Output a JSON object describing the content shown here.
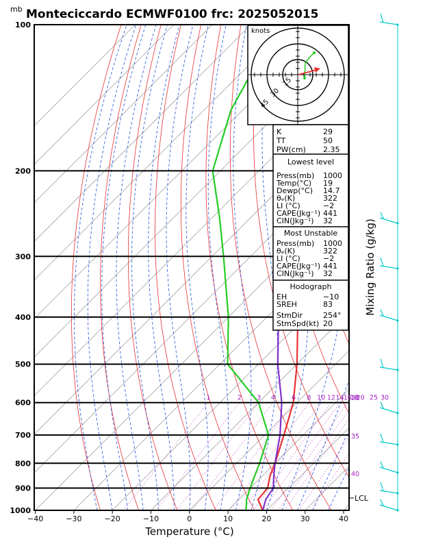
{
  "title": "Monteciccardo ECMWF0100  frc: 2025052015",
  "units_label": "mb",
  "chart_data": {
    "type": "skew-t",
    "xlabel": "Temperature (°C)",
    "right_label": "Mixing Ratio  (g/kg)",
    "x_ticks": [
      "−40",
      "−30",
      "−20",
      "−10",
      "0",
      "10",
      "20",
      "30",
      "40"
    ],
    "p_ticks": [
      "100",
      "200",
      "300",
      "400",
      "500",
      "600",
      "700",
      "800",
      "900",
      "1000"
    ],
    "mixing_ratio_labels": [
      "1",
      "2",
      "3",
      "4",
      "6",
      "8",
      "10",
      "12",
      "14",
      "16",
      "18",
      "20",
      "25",
      "30"
    ],
    "theta_e_labels": [
      "30",
      "35",
      "40"
    ],
    "lcl_label": "LCL",
    "hodograph_units": "knots",
    "hodograph_rings": [
      "15",
      "30",
      "45"
    ],
    "temperature": [
      [
        1000,
        19
      ],
      [
        950,
        17
      ],
      [
        900,
        16
      ],
      [
        850,
        13
      ],
      [
        800,
        10
      ],
      [
        700,
        4
      ],
      [
        600,
        -4
      ],
      [
        500,
        -15
      ],
      [
        400,
        -27
      ],
      [
        300,
        -44
      ],
      [
        250,
        -54
      ],
      [
        200,
        -52
      ],
      [
        150,
        -51
      ],
      [
        100,
        -50
      ]
    ],
    "dewpoint": [
      [
        1000,
        14.7
      ],
      [
        950,
        12
      ],
      [
        900,
        10
      ],
      [
        850,
        8
      ],
      [
        800,
        6
      ],
      [
        700,
        1
      ],
      [
        600,
        -10
      ],
      [
        500,
        -28
      ],
      [
        400,
        -40
      ],
      [
        300,
        -57
      ],
      [
        250,
        -68
      ],
      [
        200,
        -82
      ],
      [
        150,
        -93
      ],
      [
        100,
        -103
      ]
    ],
    "parcel": [
      [
        1000,
        19
      ],
      [
        950,
        15
      ],
      [
        900,
        14.5
      ],
      [
        850,
        12
      ],
      [
        800,
        10
      ],
      [
        700,
        5
      ],
      [
        600,
        -1
      ],
      [
        500,
        -10
      ],
      [
        400,
        -22
      ],
      [
        300,
        -38
      ],
      [
        250,
        -49
      ],
      [
        200,
        -61
      ],
      [
        150,
        -76
      ],
      [
        120,
        -86
      ]
    ]
  },
  "indices": {
    "k": "K",
    "k_val": "29",
    "tt": "TT",
    "tt_val": "50",
    "pw": "PW(cm)",
    "pw_val": "2.35"
  },
  "lowest": {
    "header": "Lowest level",
    "rows": [
      {
        "label": "Press(mb)",
        "value": "1000"
      },
      {
        "label": "Temp(°C)",
        "value": "19"
      },
      {
        "label": "Dewp(°C)",
        "value": "14.7"
      },
      {
        "label": "θₑ(K)",
        "value": "322"
      },
      {
        "label": "LI (°C)",
        "value": "−2"
      },
      {
        "label": "CAPE(Jkg⁻¹)",
        "value": "441"
      },
      {
        "label": "CIN(Jkg⁻¹)",
        "value": "32"
      }
    ]
  },
  "unstable": {
    "header": "Most Unstable",
    "rows": [
      {
        "label": "Press(mb)",
        "value": "1000"
      },
      {
        "label": "θₑ(K)",
        "value": "322"
      },
      {
        "label": "LI (°C)",
        "value": "−2"
      },
      {
        "label": "CAPE(Jkg⁻¹)",
        "value": "441"
      },
      {
        "label": "CIN(Jkg⁻¹)",
        "value": "32"
      }
    ]
  },
  "hodograph": {
    "header": "Hodograph",
    "rows": [
      {
        "label": "EH",
        "value": "−10"
      },
      {
        "label": "SREH",
        "value": "83"
      },
      {
        "label": "StmDir",
        "value": "254°"
      },
      {
        "label": "StmSpd(kt)",
        "value": "20"
      }
    ]
  },
  "colors": {
    "temperature": "#8030c8",
    "dewpoint": "#22cc22",
    "parcel": "#e83030",
    "isotherm": "#a0a0a0",
    "dry_adiabat": "#e83030",
    "moist_adiabat": "#2050e0",
    "mixing_ratio": "#c030c0",
    "barb": "#00c8c8"
  }
}
